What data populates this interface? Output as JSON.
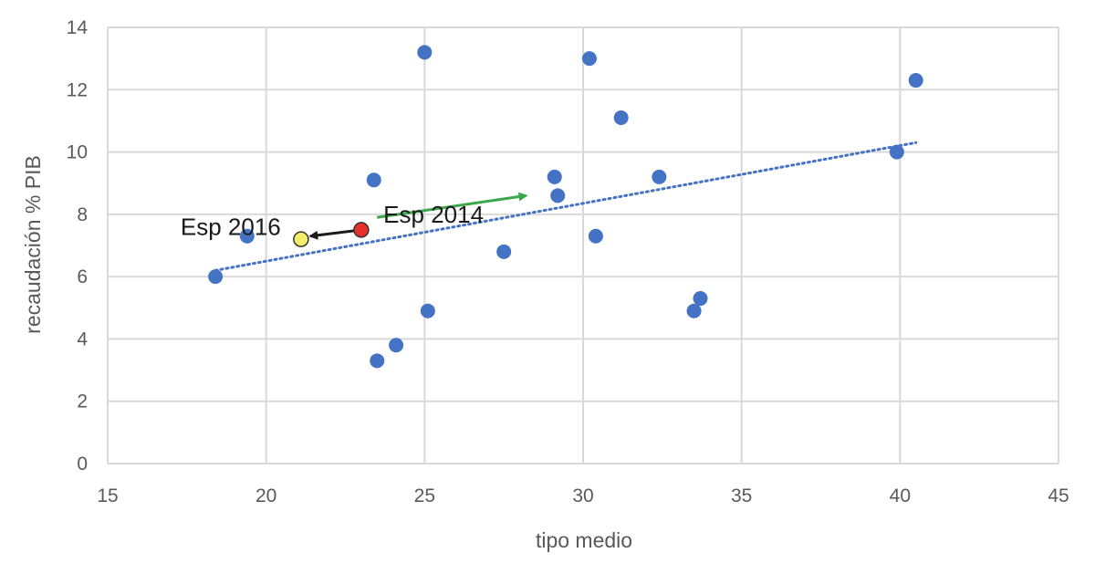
{
  "chart_data": {
    "type": "scatter",
    "xlabel": "tipo medio",
    "ylabel": "recaudación % PIB",
    "xlim": [
      15,
      45
    ],
    "ylim": [
      0,
      14
    ],
    "xticks": [
      "15",
      "20",
      "25",
      "30",
      "35",
      "40",
      "45"
    ],
    "yticks": [
      "0",
      "2",
      "4",
      "6",
      "8",
      "10",
      "12",
      "14"
    ],
    "grid": true,
    "series": [
      {
        "color": "#4472c4",
        "points": [
          {
            "x": 18.4,
            "y": 6.0
          },
          {
            "x": 19.4,
            "y": 7.3
          },
          {
            "x": 23.4,
            "y": 9.1
          },
          {
            "x": 23.5,
            "y": 3.3
          },
          {
            "x": 24.1,
            "y": 3.8
          },
          {
            "x": 25.0,
            "y": 13.2
          },
          {
            "x": 25.1,
            "y": 4.9
          },
          {
            "x": 27.5,
            "y": 6.8
          },
          {
            "x": 29.1,
            "y": 9.2
          },
          {
            "x": 29.2,
            "y": 8.6
          },
          {
            "x": 30.2,
            "y": 13.0
          },
          {
            "x": 30.4,
            "y": 7.3
          },
          {
            "x": 31.2,
            "y": 11.1
          },
          {
            "x": 32.4,
            "y": 9.2
          },
          {
            "x": 33.5,
            "y": 4.9
          },
          {
            "x": 33.7,
            "y": 5.3
          },
          {
            "x": 39.9,
            "y": 10.0
          },
          {
            "x": 40.5,
            "y": 12.3
          }
        ]
      }
    ],
    "trendline": {
      "type": "linear",
      "style": "dotted",
      "color": "#4472c4",
      "x": [
        18.4,
        40.5
      ],
      "y": [
        6.2,
        10.3
      ]
    },
    "highlights": [
      {
        "x": 23.0,
        "y": 7.5,
        "color": "#e8302a"
      },
      {
        "x": 21.1,
        "y": 7.2,
        "color": "#f3ec6a"
      }
    ],
    "arrows": [
      {
        "from": [
          23.0,
          7.5
        ],
        "to": [
          21.4,
          7.3
        ],
        "color": "#1a1a1a"
      },
      {
        "from": [
          23.5,
          7.9
        ],
        "to": [
          28.2,
          8.6
        ],
        "color": "#3aa84a"
      }
    ],
    "annotations": [
      {
        "text": "Esp 2016",
        "x": 17.3,
        "y": 7.6
      },
      {
        "text": "Esp 2014",
        "x": 23.7,
        "y": 8.0
      }
    ]
  }
}
